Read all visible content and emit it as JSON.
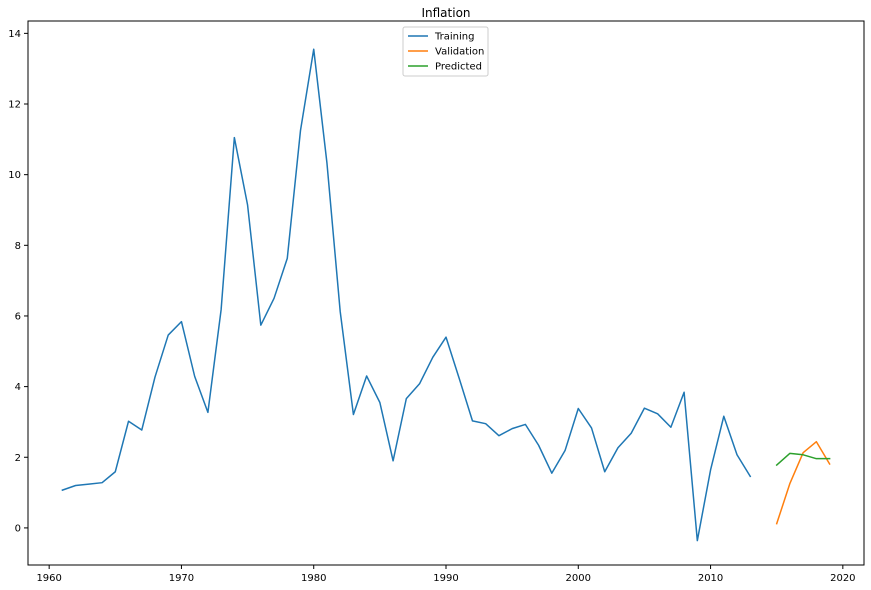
{
  "chart_data": {
    "type": "line",
    "title": "Inflation",
    "xlabel": "",
    "ylabel": "",
    "xlim": [
      1958.4,
      2021.6
    ],
    "ylim": [
      -1.05,
      14.35
    ],
    "x_ticks": [
      1960,
      1970,
      1980,
      1990,
      2000,
      2010,
      2020
    ],
    "y_ticks": [
      0,
      2,
      4,
      6,
      8,
      10,
      12,
      14
    ],
    "grid": false,
    "legend_position": "top-center",
    "series": [
      {
        "name": "Training",
        "color": "#1f77b4",
        "x": [
          1961,
          1962,
          1963,
          1964,
          1965,
          1966,
          1967,
          1968,
          1969,
          1970,
          1971,
          1972,
          1973,
          1974,
          1975,
          1976,
          1977,
          1978,
          1979,
          1980,
          1981,
          1982,
          1983,
          1984,
          1985,
          1986,
          1987,
          1988,
          1989,
          1990,
          1991,
          1992,
          1993,
          1994,
          1995,
          1996,
          1997,
          1998,
          1999,
          2000,
          2001,
          2002,
          2003,
          2004,
          2005,
          2006,
          2007,
          2008,
          2009,
          2010,
          2011,
          2012,
          2013
        ],
        "values": [
          1.07,
          1.2,
          1.24,
          1.28,
          1.59,
          3.02,
          2.77,
          4.27,
          5.46,
          5.84,
          4.29,
          3.27,
          6.18,
          11.05,
          9.14,
          5.74,
          6.5,
          7.63,
          11.25,
          13.55,
          10.33,
          6.13,
          3.21,
          4.3,
          3.55,
          1.9,
          3.66,
          4.08,
          4.83,
          5.4,
          4.23,
          3.03,
          2.95,
          2.61,
          2.81,
          2.93,
          2.34,
          1.55,
          2.19,
          3.38,
          2.83,
          1.59,
          2.27,
          2.68,
          3.39,
          3.23,
          2.85,
          3.84,
          -0.36,
          1.64,
          3.16,
          2.07,
          1.46
        ]
      },
      {
        "name": "Validation",
        "color": "#ff7f0e",
        "x": [
          2015,
          2016,
          2017,
          2018,
          2019
        ],
        "values": [
          0.12,
          1.26,
          2.13,
          2.44,
          1.81
        ]
      },
      {
        "name": "Predicted",
        "color": "#2ca02c",
        "x": [
          2015,
          2016,
          2017,
          2018,
          2019
        ],
        "values": [
          1.78,
          2.11,
          2.07,
          1.96,
          1.96
        ]
      }
    ]
  }
}
